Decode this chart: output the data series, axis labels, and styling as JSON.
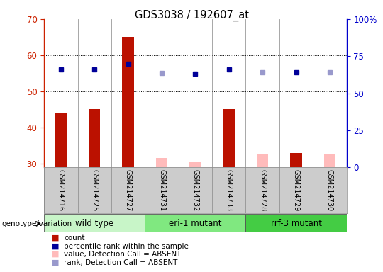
{
  "title": "GDS3038 / 192607_at",
  "samples": [
    "GSM214716",
    "GSM214725",
    "GSM214727",
    "GSM214731",
    "GSM214732",
    "GSM214733",
    "GSM214728",
    "GSM214729",
    "GSM214730"
  ],
  "groups": [
    {
      "label": "wild type",
      "color": "#c8f5c8",
      "indices": [
        0,
        1,
        2
      ]
    },
    {
      "label": "eri-1 mutant",
      "color": "#80e880",
      "indices": [
        3,
        4,
        5
      ]
    },
    {
      "label": "rrf-3 mutant",
      "color": "#44cc44",
      "indices": [
        6,
        7,
        8
      ]
    }
  ],
  "count_values": [
    44,
    45,
    65,
    null,
    null,
    45,
    null,
    33,
    null
  ],
  "count_absent": [
    null,
    null,
    null,
    31.5,
    30.5,
    null,
    32.5,
    null,
    32.5
  ],
  "rank_present": [
    66,
    66,
    70,
    null,
    63,
    66,
    null,
    64,
    null
  ],
  "rank_absent": [
    null,
    null,
    null,
    63.5,
    null,
    null,
    64,
    null,
    64
  ],
  "ylim_left": [
    29,
    70
  ],
  "ylim_right": [
    0,
    100
  ],
  "yticks_left": [
    30,
    40,
    50,
    60,
    70
  ],
  "yticks_right": [
    0,
    25,
    50,
    75,
    100
  ],
  "ytick_labels_right": [
    "0",
    "25",
    "50",
    "75",
    "100%"
  ],
  "grid_values": [
    40,
    50,
    60
  ],
  "bar_width": 0.35,
  "bar_color_present": "#bb1100",
  "bar_color_absent": "#ffbbbb",
  "rank_color_present": "#000099",
  "rank_color_absent": "#9999cc",
  "left_axis_color": "#cc2200",
  "right_axis_color": "#0000cc",
  "bg_color": "#cccccc",
  "plot_bg": "#ffffff",
  "legend_items": [
    {
      "color": "#bb1100",
      "label": "count"
    },
    {
      "color": "#000099",
      "label": "percentile rank within the sample"
    },
    {
      "color": "#ffbbbb",
      "label": "value, Detection Call = ABSENT"
    },
    {
      "color": "#9999cc",
      "label": "rank, Detection Call = ABSENT"
    }
  ],
  "figsize": [
    5.4,
    3.84
  ],
  "dpi": 100
}
